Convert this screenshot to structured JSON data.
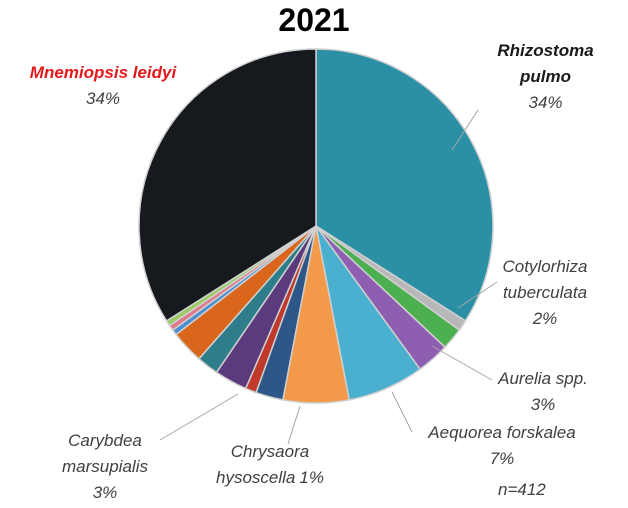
{
  "chart_data": {
    "type": "pie",
    "title": "2021",
    "categories": [
      "Rhizostoma pulmo",
      null,
      "Cotylorhiza tuberculata",
      "Aurelia spp.",
      "Aequorea forskalea",
      null,
      null,
      "Chrysaora hysoscella",
      "Carybdea marsupialis",
      null,
      null,
      null,
      null,
      null,
      "Mnemiopsis leidyi"
    ],
    "values": [
      34,
      1,
      2,
      3,
      7,
      6,
      2.5,
      1,
      3,
      2,
      3,
      0.5,
      0.5,
      0.5,
      34
    ],
    "value_labels": [
      "34%",
      null,
      "2%",
      "3%",
      "7%",
      null,
      null,
      "1%",
      "3%",
      null,
      null,
      null,
      null,
      null,
      "34%"
    ],
    "colors": [
      "#2b8fa6",
      "#b8b8b8",
      "#4caf50",
      "#8e5fb0",
      "#4bb0cf",
      "#f2994a",
      "#2f5688",
      "#c0392b",
      "#5c3a7e",
      "#2d7d8a",
      "#d9661b",
      "#4a8fd1",
      "#e07a8a",
      "#9ccc65",
      "#16191e"
    ],
    "annotation": "n=412"
  }
}
